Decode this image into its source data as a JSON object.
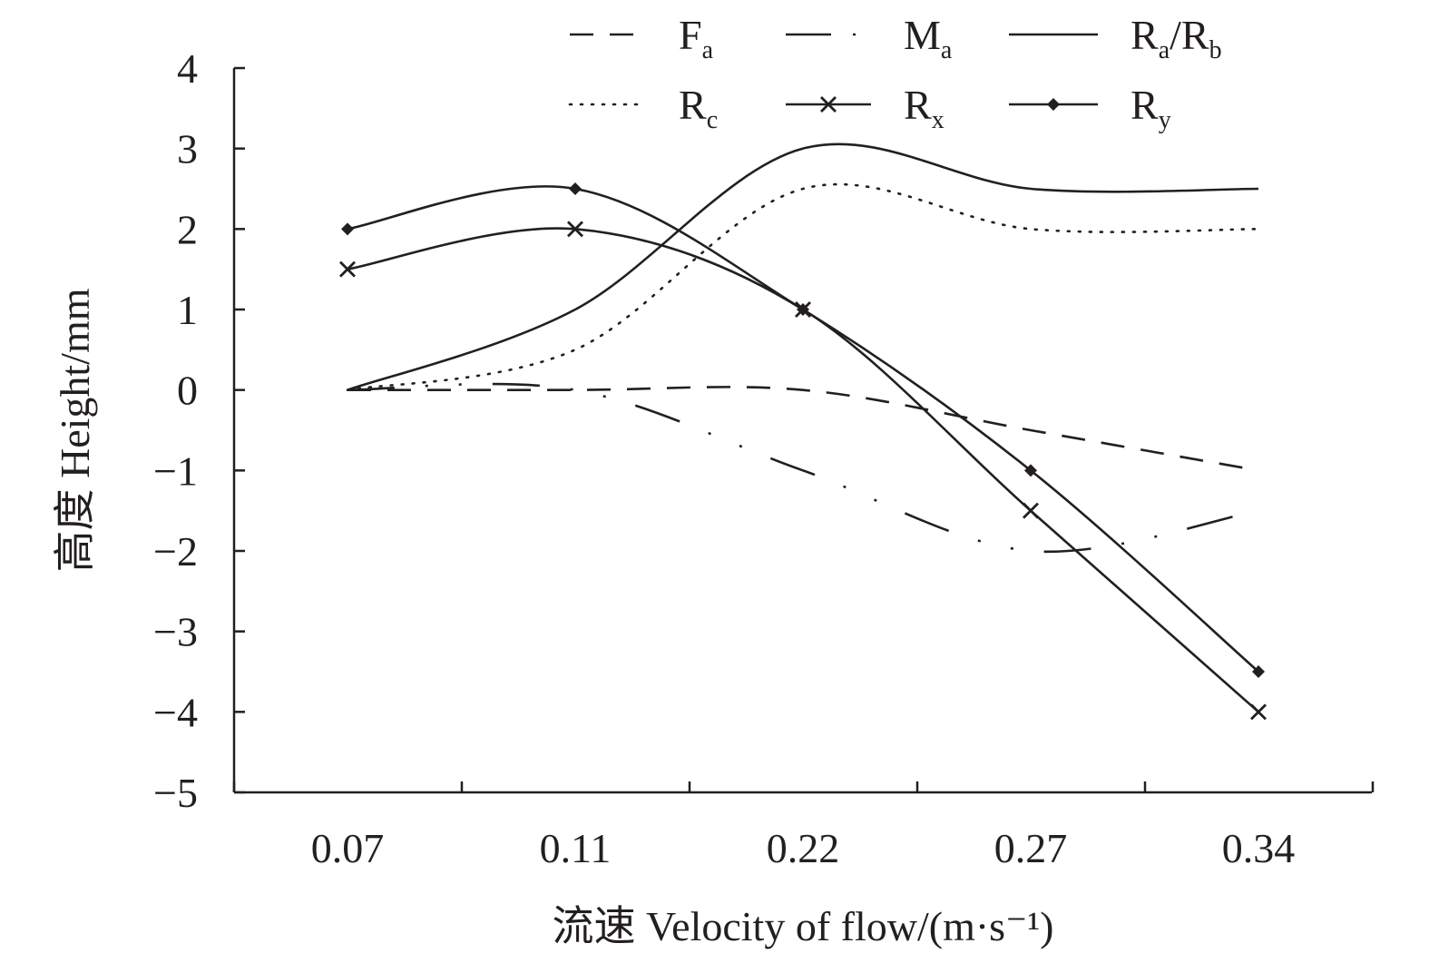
{
  "chart_data": {
    "type": "line",
    "xlabel": "流速 Velocity of flow/(m·s⁻¹)",
    "ylabel": "高度 Height/mm",
    "x_categories": [
      "0.07",
      "0.11",
      "0.22",
      "0.27",
      "0.34"
    ],
    "ylim": [
      -5,
      4
    ],
    "yticks": [
      "4",
      "3",
      "2",
      "1",
      "0",
      "−1",
      "−2",
      "−3",
      "−4",
      "−5"
    ],
    "grid": false,
    "legend_position": "top",
    "series": [
      {
        "name": "F",
        "subscript": "a",
        "style": "dashed",
        "marker": "none",
        "values": [
          0,
          0,
          0,
          -0.5,
          -1
        ]
      },
      {
        "name": "M",
        "subscript": "a",
        "style": "dash-dot",
        "marker": "none",
        "values": [
          0,
          0,
          -1,
          -2,
          -1.5
        ]
      },
      {
        "name": "R",
        "subscript": "a",
        "name2": "/R",
        "subscript2": "b",
        "style": "solid",
        "marker": "none",
        "values": [
          0,
          1,
          3,
          2.5,
          2.5
        ]
      },
      {
        "name": "R",
        "subscript": "c",
        "style": "dotted",
        "marker": "none",
        "values": [
          0,
          0.5,
          2.5,
          2,
          2
        ]
      },
      {
        "name": "R",
        "subscript": "x",
        "style": "solid",
        "marker": "x",
        "values": [
          1.5,
          2,
          1,
          -1.5,
          -4
        ]
      },
      {
        "name": "R",
        "subscript": "y",
        "style": "solid",
        "marker": "diamond",
        "values": [
          2,
          2.5,
          1,
          -1,
          -3.5
        ]
      }
    ]
  }
}
